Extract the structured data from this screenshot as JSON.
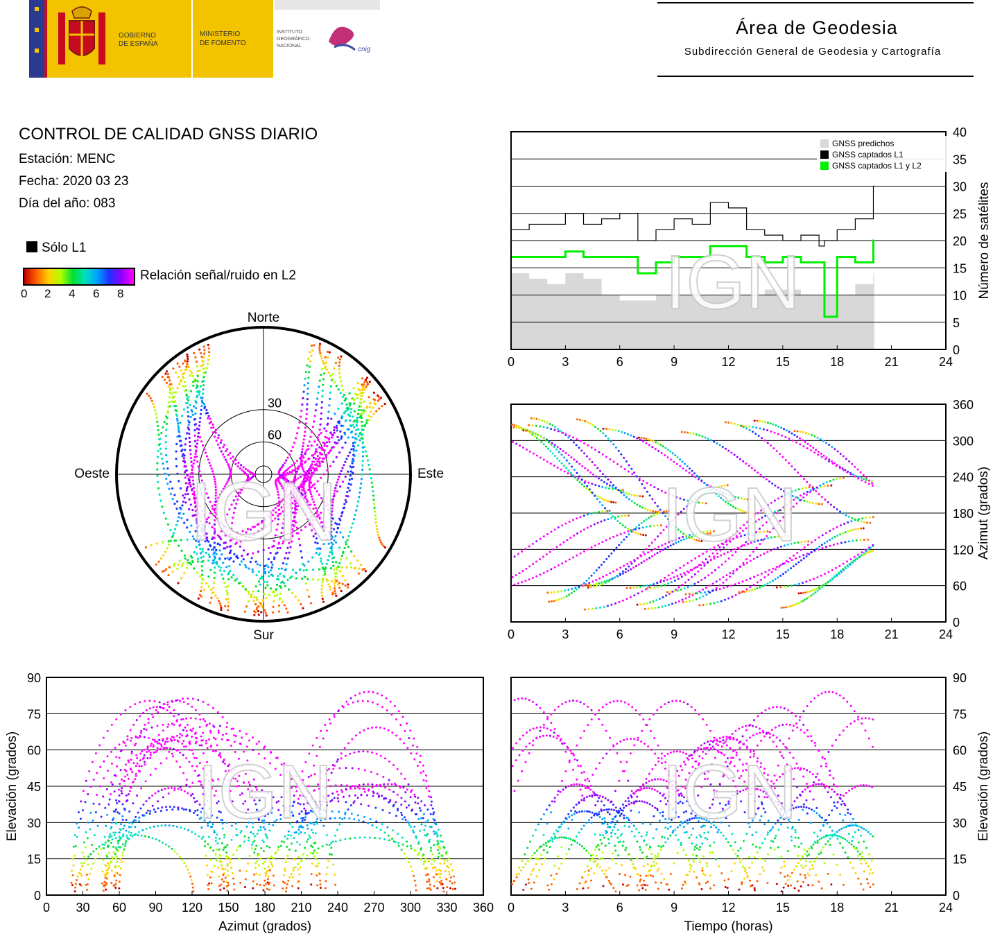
{
  "header": {
    "gov_line1": "GOBIERNO",
    "gov_line2": "DE ESPAÑA",
    "min_line1": "MINISTERIO",
    "min_line2": "DE FOMENTO",
    "ign_line1": "INSTITUTO",
    "ign_line2": "GEOGRÁFICO",
    "ign_line3": "NACIONAL",
    "cnig_text": "cnig",
    "area_title": "Área de Geodesia",
    "area_subtitle": "Subdirección General de Geodesia y Cartografía"
  },
  "report": {
    "title": "CONTROL DE CALIDAD GNSS DIARIO",
    "station": "Estación: MENC",
    "date": "Fecha: 2020 03 23",
    "doy": "Día del año: 083"
  },
  "legend": {
    "solo_l1": "Sólo L1",
    "snr_label": "Relación señal/ruido en L2",
    "snr_ticks": [
      "0",
      "2",
      "4",
      "6",
      "8"
    ],
    "snr_colors": [
      "#c00000",
      "#ff6000",
      "#ffd000",
      "#b0ff00",
      "#00e030",
      "#00e0c0",
      "#00a0ff",
      "#2030ff",
      "#9000ff",
      "#ff00ff"
    ]
  },
  "watermark": "IGN",
  "chart_data": [
    {
      "id": "satellites",
      "type": "area",
      "xlim": [
        0,
        24
      ],
      "ylim": [
        0,
        40
      ],
      "x_ticks": [
        "0",
        "3",
        "6",
        "9",
        "12",
        "15",
        "18",
        "21",
        "24"
      ],
      "y_ticks": [
        "0",
        "5",
        "10",
        "15",
        "20",
        "25",
        "30",
        "35",
        "40"
      ],
      "ylabel": "Número de satélites",
      "legend": [
        "GNSS predichos",
        "GNSS captados L1",
        "GNSS captados L1 y L2"
      ],
      "legend_position": "top-right",
      "x": [
        0,
        1,
        2,
        3,
        4,
        5,
        6,
        7,
        8,
        9,
        10,
        11,
        12,
        13,
        14,
        15,
        16,
        17,
        17.3,
        18,
        19,
        20
      ],
      "series": [
        {
          "name": "GNSS predichos",
          "color": "#d8d8d8",
          "values": [
            14,
            13,
            12,
            14,
            13,
            10,
            9,
            9,
            10,
            10,
            10,
            10,
            10,
            10,
            11,
            11,
            10,
            10,
            10,
            10,
            12,
            14
          ]
        },
        {
          "name": "GNSS captados L1",
          "color": "#000000",
          "values": [
            22,
            23,
            23,
            25,
            23,
            24,
            25,
            20,
            22,
            24,
            23,
            27,
            26,
            22,
            21,
            20,
            21,
            19,
            20,
            22,
            24,
            30
          ]
        },
        {
          "name": "GNSS captados L1 y L2",
          "color": "#00ee00",
          "values": [
            17,
            17,
            17,
            18,
            17,
            17,
            17,
            14,
            16,
            17,
            17,
            19,
            19,
            17,
            16,
            17,
            16,
            16,
            6,
            17,
            16,
            20
          ]
        }
      ]
    },
    {
      "id": "skyplot",
      "type": "scatter",
      "rings": [
        "30",
        "60"
      ],
      "directions": {
        "north": "Norte",
        "south": "Sur",
        "east": "Este",
        "west": "Oeste"
      }
    },
    {
      "id": "azimuth-time",
      "type": "scatter",
      "xlim": [
        0,
        24
      ],
      "ylim": [
        0,
        360
      ],
      "x_ticks": [
        "0",
        "3",
        "6",
        "9",
        "12",
        "15",
        "18",
        "21",
        "24"
      ],
      "y_ticks": [
        "0",
        "60",
        "120",
        "180",
        "240",
        "300",
        "360"
      ],
      "ylabel": "Azimut (grados)"
    },
    {
      "id": "elevation-azimuth",
      "type": "scatter",
      "xlim": [
        0,
        360
      ],
      "ylim": [
        0,
        90
      ],
      "x_ticks": [
        "0",
        "30",
        "60",
        "90",
        "120",
        "150",
        "180",
        "210",
        "240",
        "270",
        "300",
        "330",
        "360"
      ],
      "y_ticks": [
        "0",
        "15",
        "30",
        "45",
        "60",
        "75",
        "90"
      ],
      "xlabel": "Azimut (grados)",
      "ylabel": "Elevación (grados)"
    },
    {
      "id": "elevation-time",
      "type": "scatter",
      "xlim": [
        0,
        24
      ],
      "ylim": [
        0,
        90
      ],
      "x_ticks": [
        "0",
        "3",
        "6",
        "9",
        "12",
        "15",
        "18",
        "21",
        "24"
      ],
      "y_ticks": [
        "0",
        "15",
        "30",
        "45",
        "60",
        "75",
        "90"
      ],
      "xlabel": "Tiempo (horas)",
      "ylabel": "Elevación (grados)"
    }
  ]
}
